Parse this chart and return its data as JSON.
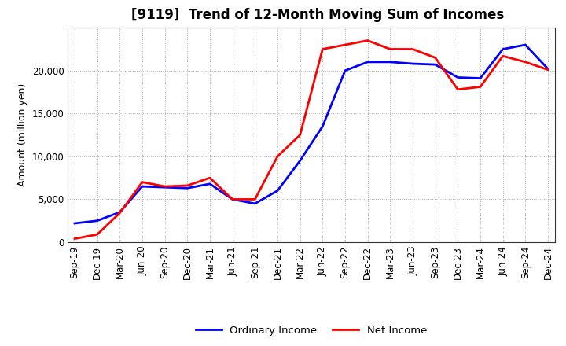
{
  "title": "[9119]  Trend of 12-Month Moving Sum of Incomes",
  "ylabel": "Amount (million yen)",
  "x_labels": [
    "Sep-19",
    "Dec-19",
    "Mar-20",
    "Jun-20",
    "Sep-20",
    "Dec-20",
    "Mar-21",
    "Jun-21",
    "Sep-21",
    "Dec-21",
    "Mar-22",
    "Jun-22",
    "Sep-22",
    "Dec-22",
    "Mar-23",
    "Jun-23",
    "Sep-23",
    "Dec-23",
    "Mar-24",
    "Jun-24",
    "Sep-24",
    "Dec-24"
  ],
  "ordinary_income": [
    2200,
    2500,
    3500,
    6500,
    6400,
    6300,
    6800,
    5000,
    4500,
    6000,
    9500,
    13500,
    20000,
    21000,
    21000,
    20800,
    20700,
    19200,
    19100,
    22500,
    23000,
    20200
  ],
  "net_income": [
    400,
    900,
    3400,
    7000,
    6500,
    6600,
    7500,
    5000,
    5000,
    10000,
    12500,
    22500,
    23000,
    23500,
    22500,
    22500,
    21500,
    17800,
    18100,
    21700,
    21000,
    20100
  ],
  "ordinary_color": "#0000FF",
  "net_color": "#FF0000",
  "ylim": [
    0,
    25000
  ],
  "yticks": [
    0,
    5000,
    10000,
    15000,
    20000
  ],
  "grid_color": "#AAAAAA",
  "bg_color": "#FFFFFF",
  "plot_bg_color": "#FFFFFF",
  "legend_labels": [
    "Ordinary Income",
    "Net Income"
  ],
  "title_fontsize": 12,
  "label_fontsize": 9,
  "tick_fontsize": 8.5
}
